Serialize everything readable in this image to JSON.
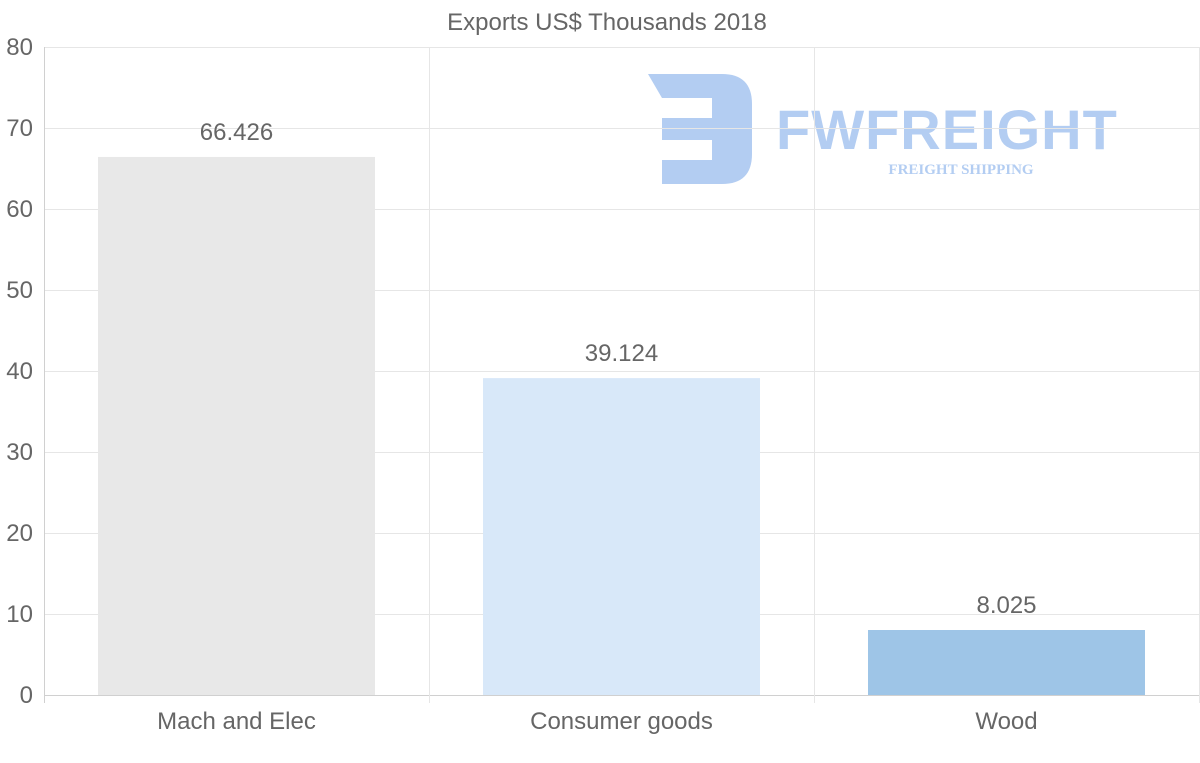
{
  "chart_data": {
    "type": "bar",
    "title": "Exports US$ Thousands 2018",
    "categories": [
      "Mach and Elec",
      "Consumer goods",
      "Wood"
    ],
    "values": [
      66.426,
      39.124,
      8.025
    ],
    "value_labels": [
      "66.426",
      "39.124",
      "8.025"
    ],
    "bar_colors": [
      "#e8e8e8",
      "#d8e8f9",
      "#9ec5e7"
    ],
    "ylim": [
      0,
      80
    ],
    "yticks": [
      "0",
      "10",
      "20",
      "30",
      "40",
      "50",
      "60",
      "70",
      "80"
    ],
    "xlabel": "",
    "ylabel": "",
    "grid": true
  },
  "watermark": {
    "brand": "FWFREIGHT",
    "tagline": "FREIGHT SHIPPING",
    "color": "#b3cdf2"
  }
}
